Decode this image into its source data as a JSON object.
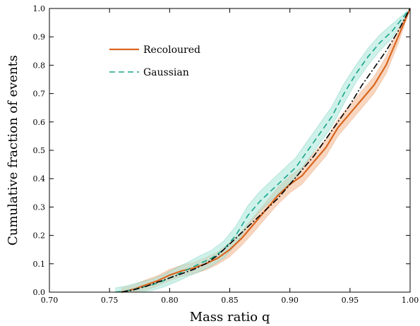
{
  "chart_data": {
    "type": "line",
    "xlabel": "Mass ratio q",
    "ylabel": "Cumulative fraction of events",
    "xlim": [
      0.7,
      1.0
    ],
    "ylim": [
      0.0,
      1.0
    ],
    "xticks": [
      "0.70",
      "0.75",
      "0.80",
      "0.85",
      "0.90",
      "0.95",
      "1.00"
    ],
    "yticks": [
      "0.0",
      "0.1",
      "0.2",
      "0.3",
      "0.4",
      "0.5",
      "0.6",
      "0.7",
      "0.8",
      "0.9",
      "1.0"
    ],
    "grid": false,
    "legend_position": "top-left",
    "series": [
      {
        "name": "Recoloured",
        "color": "#d9661f",
        "band_color": "#f2b48c",
        "style": "solid",
        "x": [
          0.76,
          0.77,
          0.78,
          0.79,
          0.8,
          0.81,
          0.82,
          0.83,
          0.84,
          0.85,
          0.86,
          0.87,
          0.88,
          0.89,
          0.9,
          0.91,
          0.92,
          0.93,
          0.94,
          0.95,
          0.96,
          0.97,
          0.98,
          0.99,
          1.0
        ],
        "y": [
          0.0,
          0.01,
          0.025,
          0.04,
          0.06,
          0.075,
          0.085,
          0.1,
          0.12,
          0.15,
          0.19,
          0.24,
          0.29,
          0.34,
          0.38,
          0.41,
          0.46,
          0.51,
          0.58,
          0.63,
          0.68,
          0.73,
          0.8,
          0.9,
          1.0
        ],
        "band": [
          0.015,
          0.015,
          0.018,
          0.018,
          0.02,
          0.02,
          0.02,
          0.022,
          0.022,
          0.025,
          0.025,
          0.028,
          0.028,
          0.03,
          0.03,
          0.03,
          0.03,
          0.03,
          0.03,
          0.03,
          0.03,
          0.03,
          0.03,
          0.025,
          0.0
        ]
      },
      {
        "name": "Gaussian",
        "color": "#1aa58a",
        "band_color": "#a6e6d8",
        "style": "dashed",
        "x": [
          0.755,
          0.765,
          0.775,
          0.785,
          0.795,
          0.805,
          0.815,
          0.825,
          0.835,
          0.845,
          0.855,
          0.865,
          0.875,
          0.885,
          0.895,
          0.905,
          0.915,
          0.925,
          0.935,
          0.945,
          0.955,
          0.965,
          0.975,
          0.985,
          1.0
        ],
        "y": [
          0.0,
          0.005,
          0.015,
          0.025,
          0.04,
          0.06,
          0.08,
          0.1,
          0.12,
          0.15,
          0.2,
          0.27,
          0.32,
          0.36,
          0.4,
          0.44,
          0.5,
          0.56,
          0.62,
          0.7,
          0.77,
          0.83,
          0.88,
          0.92,
          1.0
        ],
        "band": [
          0.015,
          0.018,
          0.02,
          0.02,
          0.022,
          0.025,
          0.025,
          0.028,
          0.028,
          0.03,
          0.032,
          0.035,
          0.035,
          0.035,
          0.035,
          0.035,
          0.035,
          0.035,
          0.035,
          0.035,
          0.03,
          0.03,
          0.028,
          0.025,
          0.0
        ]
      },
      {
        "name": "",
        "color": "#000000",
        "style": "dashdot",
        "x": [
          0.76,
          0.77,
          0.78,
          0.79,
          0.8,
          0.81,
          0.82,
          0.83,
          0.84,
          0.85,
          0.86,
          0.87,
          0.88,
          0.89,
          0.9,
          0.91,
          0.92,
          0.93,
          0.94,
          0.95,
          0.96,
          0.97,
          0.98,
          0.99,
          1.0
        ],
        "y": [
          0.0,
          0.008,
          0.02,
          0.035,
          0.05,
          0.065,
          0.08,
          0.1,
          0.13,
          0.17,
          0.21,
          0.25,
          0.29,
          0.33,
          0.38,
          0.43,
          0.48,
          0.54,
          0.6,
          0.66,
          0.73,
          0.79,
          0.85,
          0.92,
          1.0
        ]
      }
    ]
  }
}
